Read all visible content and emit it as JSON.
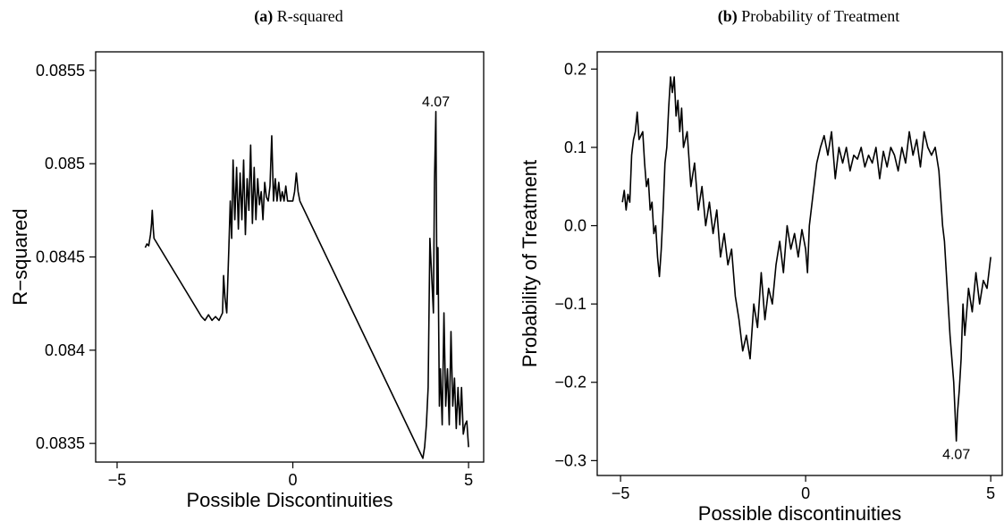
{
  "chart_data": [
    {
      "type": "line",
      "label": "(a)",
      "title": "R-squared",
      "x_label": "Possible Discontinuities",
      "y_label": "R−squared",
      "xlim": [
        -5.61,
        5.43
      ],
      "ylim": [
        0.0834,
        0.0856
      ],
      "xticks": [
        {
          "value": -5,
          "label": "−5"
        },
        0,
        5
      ],
      "yticks": [
        0.0835,
        0.084,
        0.0845,
        0.085,
        0.0855
      ],
      "series": [
        {
          "name": "R-squared",
          "color": "#000000",
          "x": [
            -4.2,
            -4.15,
            -4.1,
            -4.05,
            -4.02,
            -4.0,
            -3.97,
            -3.95,
            -2.6,
            -2.5,
            -2.4,
            -2.3,
            -2.2,
            -2.1,
            -2.0,
            -1.97,
            -1.93,
            -1.88,
            -1.82,
            -1.78,
            -1.74,
            -1.7,
            -1.65,
            -1.6,
            -1.55,
            -1.5,
            -1.45,
            -1.4,
            -1.35,
            -1.3,
            -1.25,
            -1.2,
            -1.15,
            -1.1,
            -1.05,
            -1.0,
            -0.95,
            -0.9,
            -0.85,
            -0.8,
            -0.75,
            -0.7,
            -0.65,
            -0.6,
            -0.55,
            -0.5,
            -0.45,
            -0.4,
            -0.35,
            -0.3,
            -0.25,
            -0.2,
            -0.15,
            -0.1,
            -0.05,
            0.0,
            0.05,
            0.1,
            0.15,
            0.2,
            3.7,
            3.75,
            3.8,
            3.85,
            3.9,
            3.95,
            4.0,
            4.03,
            4.07,
            4.1,
            4.13,
            4.17,
            4.2,
            4.25,
            4.3,
            4.35,
            4.4,
            4.45,
            4.5,
            4.55,
            4.6,
            4.65,
            4.7,
            4.75,
            4.8,
            4.85,
            4.9,
            4.95,
            5.0
          ],
          "values": [
            0.08455,
            0.08457,
            0.08456,
            0.08462,
            0.08468,
            0.08475,
            0.08465,
            0.0846,
            0.08418,
            0.08416,
            0.08419,
            0.08416,
            0.08418,
            0.08416,
            0.0842,
            0.0844,
            0.08428,
            0.0842,
            0.08455,
            0.0848,
            0.0846,
            0.08502,
            0.0847,
            0.08498,
            0.08465,
            0.08495,
            0.0847,
            0.08502,
            0.08462,
            0.08492,
            0.08475,
            0.0851,
            0.08468,
            0.08498,
            0.0847,
            0.08492,
            0.08478,
            0.08485,
            0.0847,
            0.0849,
            0.08482,
            0.0848,
            0.08488,
            0.08515,
            0.0848,
            0.08492,
            0.0848,
            0.0849,
            0.0848,
            0.08485,
            0.0848,
            0.08488,
            0.0848,
            0.0848,
            0.0848,
            0.0848,
            0.08485,
            0.08495,
            0.08485,
            0.0848,
            0.08342,
            0.08348,
            0.0836,
            0.0838,
            0.0846,
            0.0844,
            0.0842,
            0.0849,
            0.08528,
            0.0843,
            0.08455,
            0.0837,
            0.0839,
            0.0836,
            0.0842,
            0.0837,
            0.0839,
            0.0836,
            0.0841,
            0.0837,
            0.08385,
            0.08358,
            0.0838,
            0.0836,
            0.0838,
            0.08355,
            0.0836,
            0.08362,
            0.08348
          ]
        }
      ],
      "annotations": [
        {
          "text": "4.07",
          "x": 4.07,
          "y": 0.08528
        }
      ]
    },
    {
      "type": "line",
      "label": "(b)",
      "title": "Probability of Treatment",
      "x_label": "Possible discontinuities",
      "y_label": "Probability of Treatment",
      "xlim": [
        -5.63,
        5.31
      ],
      "ylim": [
        -0.319,
        0.222
      ],
      "xticks": [
        {
          "value": -5,
          "label": "−5"
        },
        0,
        5
      ],
      "yticks": [
        {
          "value": -0.3,
          "label": "−0.3"
        },
        {
          "value": -0.2,
          "label": "−0.2"
        },
        {
          "value": -0.1,
          "label": "−0.1"
        },
        {
          "value": 0,
          "label": "0.0"
        },
        0.1,
        0.2
      ],
      "series": [
        {
          "name": "Probability of Treatment",
          "color": "#000000",
          "x": [
            -4.95,
            -4.9,
            -4.85,
            -4.8,
            -4.75,
            -4.7,
            -4.65,
            -4.6,
            -4.55,
            -4.5,
            -4.45,
            -4.4,
            -4.35,
            -4.3,
            -4.25,
            -4.2,
            -4.15,
            -4.1,
            -4.05,
            -4.0,
            -3.95,
            -3.9,
            -3.85,
            -3.8,
            -3.75,
            -3.7,
            -3.65,
            -3.6,
            -3.55,
            -3.5,
            -3.45,
            -3.4,
            -3.35,
            -3.3,
            -3.2,
            -3.1,
            -3.0,
            -2.9,
            -2.8,
            -2.7,
            -2.6,
            -2.5,
            -2.4,
            -2.3,
            -2.2,
            -2.1,
            -2.0,
            -1.9,
            -1.8,
            -1.7,
            -1.6,
            -1.5,
            -1.4,
            -1.3,
            -1.2,
            -1.1,
            -1.0,
            -0.9,
            -0.8,
            -0.7,
            -0.6,
            -0.5,
            -0.4,
            -0.3,
            -0.2,
            -0.1,
            0.0,
            0.05,
            0.1,
            0.2,
            0.3,
            0.4,
            0.5,
            0.6,
            0.7,
            0.8,
            0.9,
            1.0,
            1.1,
            1.2,
            1.3,
            1.4,
            1.5,
            1.6,
            1.7,
            1.8,
            1.9,
            2.0,
            2.1,
            2.2,
            2.3,
            2.4,
            2.5,
            2.6,
            2.7,
            2.8,
            2.9,
            3.0,
            3.1,
            3.2,
            3.3,
            3.4,
            3.5,
            3.6,
            3.7,
            3.75,
            3.8,
            3.85,
            3.9,
            3.95,
            4.0,
            4.07,
            4.1,
            4.15,
            4.2,
            4.25,
            4.3,
            4.4,
            4.5,
            4.6,
            4.7,
            4.8,
            4.9,
            5.0
          ],
          "values": [
            0.03,
            0.045,
            0.02,
            0.04,
            0.03,
            0.09,
            0.11,
            0.12,
            0.145,
            0.11,
            0.115,
            0.12,
            0.08,
            0.05,
            0.06,
            0.02,
            0.03,
            -0.01,
            0.0,
            -0.04,
            -0.065,
            -0.03,
            0.02,
            0.08,
            0.1,
            0.15,
            0.19,
            0.17,
            0.19,
            0.14,
            0.16,
            0.12,
            0.15,
            0.1,
            0.12,
            0.05,
            0.08,
            0.02,
            0.05,
            0.0,
            0.03,
            -0.01,
            0.02,
            -0.04,
            -0.01,
            -0.05,
            -0.03,
            -0.09,
            -0.12,
            -0.16,
            -0.14,
            -0.17,
            -0.1,
            -0.13,
            -0.06,
            -0.12,
            -0.08,
            -0.1,
            -0.05,
            -0.02,
            -0.06,
            0.0,
            -0.03,
            -0.01,
            -0.04,
            -0.005,
            -0.03,
            -0.06,
            0.0,
            0.04,
            0.08,
            0.1,
            0.115,
            0.09,
            0.12,
            0.06,
            0.1,
            0.08,
            0.1,
            0.07,
            0.09,
            0.085,
            0.1,
            0.075,
            0.09,
            0.08,
            0.1,
            0.06,
            0.095,
            0.075,
            0.1,
            0.09,
            0.07,
            0.1,
            0.08,
            0.12,
            0.09,
            0.11,
            0.075,
            0.12,
            0.1,
            0.09,
            0.1,
            0.07,
            0.0,
            -0.02,
            -0.06,
            -0.1,
            -0.14,
            -0.17,
            -0.2,
            -0.275,
            -0.24,
            -0.21,
            -0.17,
            -0.1,
            -0.14,
            -0.08,
            -0.11,
            -0.06,
            -0.1,
            -0.07,
            -0.08,
            -0.04
          ]
        }
      ],
      "annotations": [
        {
          "text": "4.07",
          "x": 4.07,
          "y": -0.275
        }
      ]
    }
  ]
}
